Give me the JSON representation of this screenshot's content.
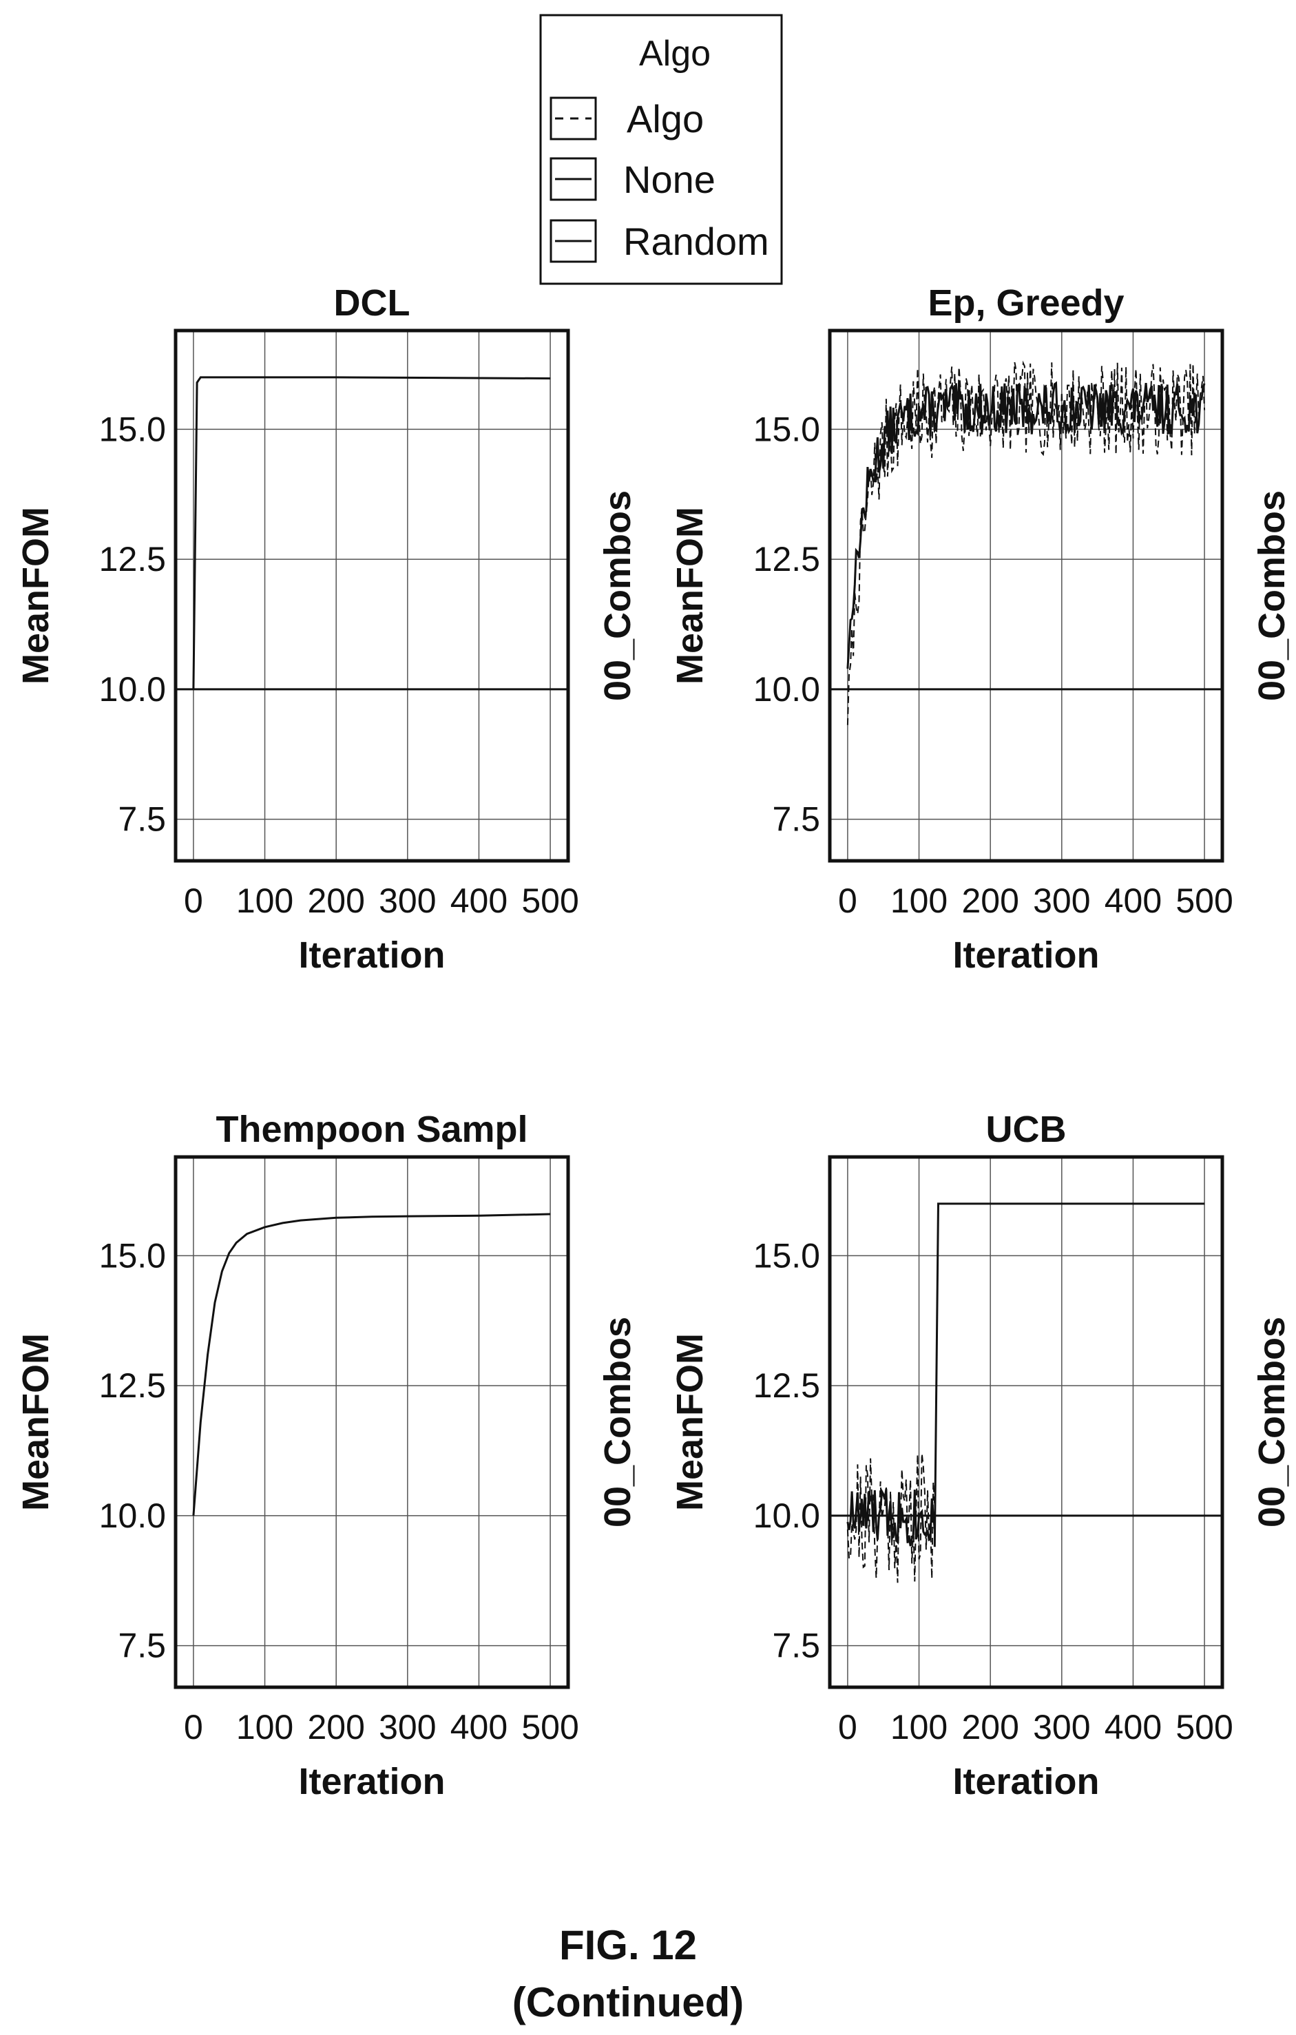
{
  "legend": {
    "title": "Algo",
    "entries": [
      {
        "label": "Algo",
        "style": "dashed"
      },
      {
        "label": "None",
        "style": "solid"
      },
      {
        "label": "Random",
        "style": "solid"
      }
    ]
  },
  "caption": {
    "line1": "FIG. 12",
    "line2": "(Continued)"
  },
  "chart_data": [
    {
      "type": "line",
      "title": "DCL",
      "xlabel": "Iteration",
      "ylabel": "MeanFOM",
      "y2label": "00_Combos",
      "xlim": [
        -25,
        525
      ],
      "ylim": [
        6.7,
        16.9
      ],
      "xticks": [
        0,
        100,
        200,
        300,
        400,
        500
      ],
      "yticks": [
        7.5,
        10.0,
        12.5,
        15.0
      ],
      "xtick_labels": [
        "0",
        "100",
        "200",
        "300",
        "400",
        "500"
      ],
      "ytick_labels": [
        "7.5",
        "10.0",
        "12.5",
        "15.0"
      ],
      "grid": true,
      "series": [
        {
          "style": "solid",
          "kind": "hline",
          "y": 10.0
        },
        {
          "style": "solid",
          "kind": "points",
          "x": [
            0,
            5,
            10,
            200,
            500
          ],
          "y": [
            10.0,
            15.9,
            16.0,
            16.0,
            15.98
          ]
        }
      ]
    },
    {
      "type": "line",
      "title": "Ep, Greedy",
      "xlabel": "Iteration",
      "ylabel": "MeanFOM",
      "y2label": "00_Combos",
      "xlim": [
        -25,
        525
      ],
      "ylim": [
        6.7,
        16.9
      ],
      "xticks": [
        0,
        100,
        200,
        300,
        400,
        500
      ],
      "yticks": [
        7.5,
        10.0,
        12.5,
        15.0
      ],
      "xtick_labels": [
        "0",
        "100",
        "200",
        "300",
        "400",
        "500"
      ],
      "ytick_labels": [
        "7.5",
        "10.0",
        "12.5",
        "15.0"
      ],
      "grid": true,
      "series": [
        {
          "style": "solid",
          "kind": "hline",
          "y": 10.0
        },
        {
          "style": "dashed",
          "kind": "noise",
          "x_start": 0,
          "x_end": 500,
          "start": 9.5,
          "plateau": 15.4,
          "rise": 25,
          "amplitude": 0.9,
          "seed": 7
        },
        {
          "style": "solid",
          "kind": "noise",
          "x_start": 0,
          "x_end": 500,
          "start": 10.5,
          "plateau": 15.4,
          "rise": 25,
          "amplitude": 0.5,
          "seed": 13
        }
      ]
    },
    {
      "type": "line",
      "title": "Thempoon Sampl",
      "xlabel": "Iteration",
      "ylabel": "MeanFOM",
      "y2label": "00_Combos",
      "xlim": [
        -25,
        525
      ],
      "ylim": [
        6.7,
        16.9
      ],
      "xticks": [
        0,
        100,
        200,
        300,
        400,
        500
      ],
      "yticks": [
        7.5,
        10.0,
        12.5,
        15.0
      ],
      "xtick_labels": [
        "0",
        "100",
        "200",
        "300",
        "400",
        "500"
      ],
      "ytick_labels": [
        "7.5",
        "10.0",
        "12.5",
        "15.0"
      ],
      "grid": true,
      "series": [
        {
          "style": "solid",
          "kind": "points",
          "x": [
            0,
            5,
            10,
            20,
            30,
            40,
            50,
            60,
            75,
            100,
            125,
            150,
            200,
            250,
            300,
            400,
            500
          ],
          "y": [
            10.0,
            10.9,
            11.8,
            13.1,
            14.1,
            14.7,
            15.05,
            15.25,
            15.42,
            15.55,
            15.63,
            15.68,
            15.73,
            15.75,
            15.76,
            15.77,
            15.8
          ]
        }
      ]
    },
    {
      "type": "line",
      "title": "UCB",
      "xlabel": "Iteration",
      "ylabel": "MeanFOM",
      "y2label": "00_Combos",
      "xlim": [
        -25,
        525
      ],
      "ylim": [
        6.7,
        16.9
      ],
      "xticks": [
        0,
        100,
        200,
        300,
        400,
        500
      ],
      "yticks": [
        7.5,
        10.0,
        12.5,
        15.0
      ],
      "xtick_labels": [
        "0",
        "100",
        "200",
        "300",
        "400",
        "500"
      ],
      "ytick_labels": [
        "7.5",
        "10.0",
        "12.5",
        "15.0"
      ],
      "grid": true,
      "series": [
        {
          "style": "solid",
          "kind": "hline",
          "y": 10.0
        },
        {
          "style": "dashed",
          "kind": "noise",
          "x_start": 0,
          "x_end": 122,
          "start": 10.0,
          "plateau": 10.0,
          "rise": 1,
          "amplitude": 1.3,
          "seed": 21
        },
        {
          "style": "solid",
          "kind": "noise",
          "x_start": 0,
          "x_end": 122,
          "start": 10.0,
          "plateau": 10.0,
          "rise": 1,
          "amplitude": 0.6,
          "seed": 33
        },
        {
          "style": "solid",
          "kind": "points",
          "x": [
            122,
            127,
            500
          ],
          "y": [
            9.4,
            16.0,
            16.0
          ]
        }
      ]
    }
  ]
}
